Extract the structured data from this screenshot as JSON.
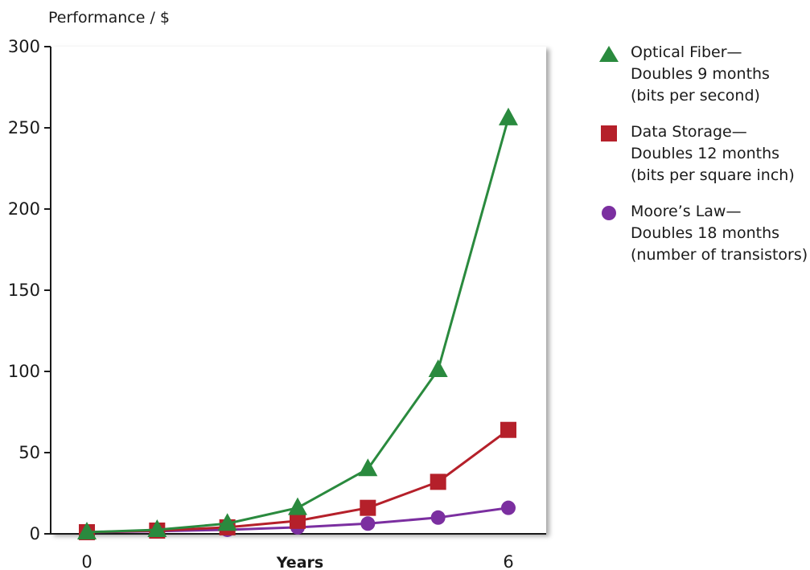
{
  "chart_data": {
    "type": "line",
    "ylabel": "Performance / $",
    "xlabel": "Years",
    "xlim": [
      0,
      6
    ],
    "ylim": [
      0,
      300
    ],
    "y_ticks": [
      0,
      50,
      100,
      150,
      200,
      250,
      300
    ],
    "x_ticks": [
      0,
      6
    ],
    "grid": false,
    "legend_position": "right",
    "x": [
      0,
      1,
      2,
      3,
      4,
      5,
      6
    ],
    "series": [
      {
        "name_lines": [
          "Optical Fiber—",
          "Doubles 9 months",
          "(bits per second)"
        ],
        "marker": "triangle",
        "color": "#2a8a3e",
        "values": [
          1,
          2.5,
          6.3,
          16,
          40,
          101,
          256
        ]
      },
      {
        "name_lines": [
          "Data Storage—",
          "Doubles 12 months",
          "(bits per square inch)"
        ],
        "marker": "square",
        "color": "#b5202a",
        "values": [
          1,
          2,
          4,
          8,
          16,
          32,
          64
        ]
      },
      {
        "name_lines": [
          "Moore’s Law—",
          "Doubles 18 months",
          "(number of transistors)"
        ],
        "marker": "circle",
        "color": "#7b2fa0",
        "values": [
          1,
          1.6,
          2.5,
          4,
          6.3,
          10,
          16
        ]
      }
    ]
  }
}
